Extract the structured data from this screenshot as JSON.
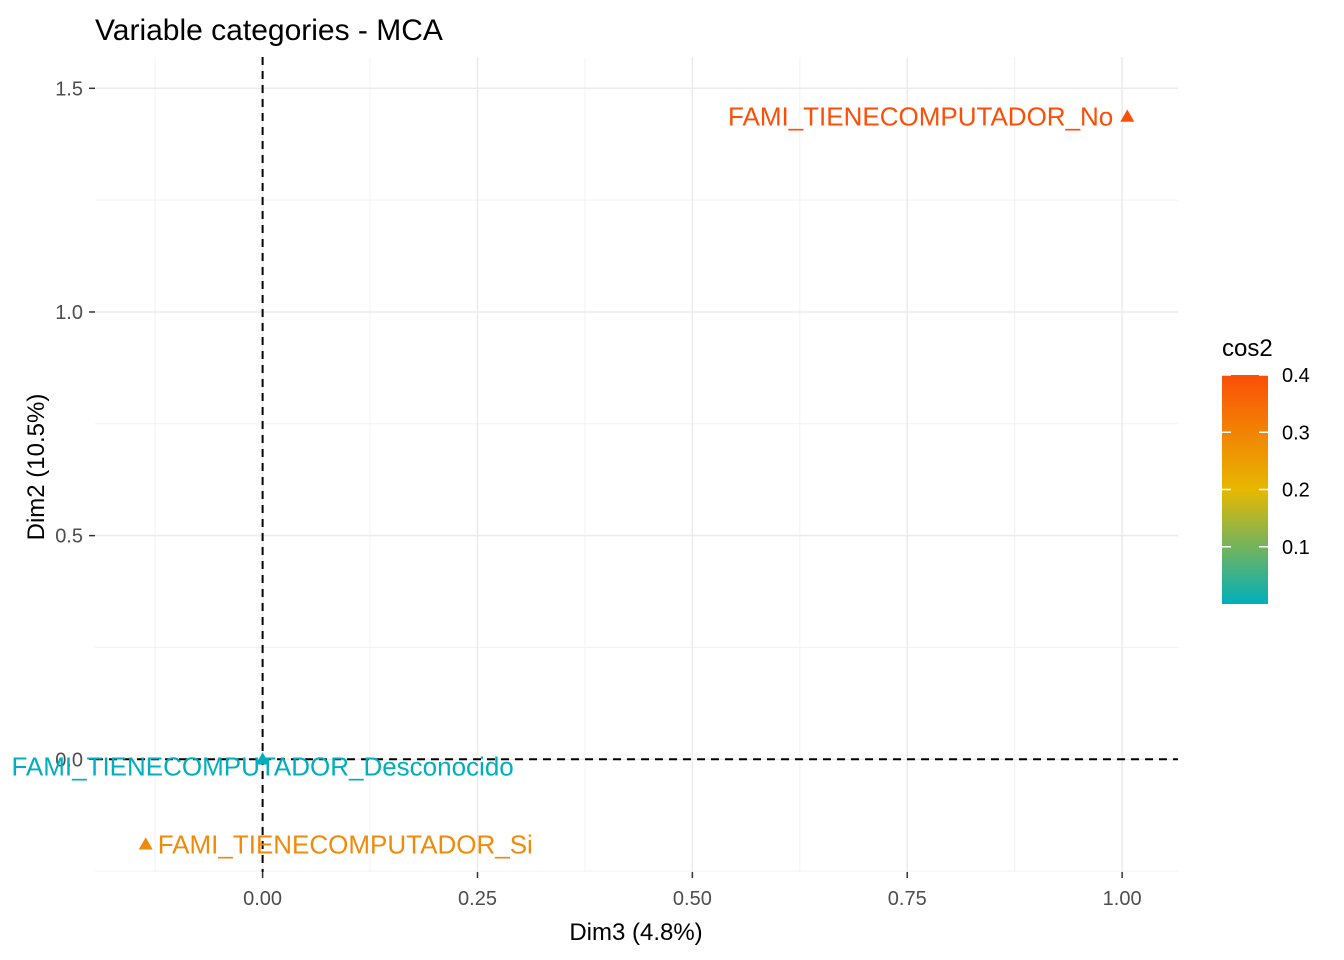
{
  "chart_data": {
    "type": "scatter",
    "title": "Variable categories - MCA",
    "xlabel": "Dim3 (4.8%)",
    "ylabel": "Dim2 (10.5%)",
    "xlim": [
      -0.195,
      1.065
    ],
    "ylim": [
      -0.252,
      1.57
    ],
    "xticks": [
      0.0,
      0.25,
      0.5,
      0.75,
      1.0
    ],
    "xtick_labels": [
      "0.00",
      "0.25",
      "0.50",
      "0.75",
      "1.00"
    ],
    "yticks": [
      0.0,
      0.5,
      1.0,
      1.5
    ],
    "ytick_labels": [
      "0.0",
      "0.5",
      "1.0",
      "1.5"
    ],
    "grid": true,
    "reference_lines": {
      "x": 0,
      "y": 0,
      "style": "dashed"
    },
    "points": [
      {
        "label": "FAMI_TIENECOMPUTADOR_No",
        "x": 1.006,
        "y": 1.437,
        "cos2": 0.4,
        "color": "#fc4e07",
        "label_anchor": "end"
      },
      {
        "label": "FAMI_TIENECOMPUTADOR_Desconocido",
        "x": 0.0,
        "y": 0.0,
        "cos2": 0.0,
        "color": "#00afbb",
        "label_anchor": "middle"
      },
      {
        "label": "FAMI_TIENECOMPUTADOR_Si",
        "x": -0.136,
        "y": -0.19,
        "cos2": 0.33,
        "color": "#f08a0b",
        "label_anchor": "start"
      }
    ],
    "legend": {
      "title": "cos2",
      "position": "right",
      "ticks": [
        "0.1",
        "0.2",
        "0.3",
        "0.4"
      ],
      "tick_values": [
        0.1,
        0.2,
        0.3,
        0.4
      ],
      "range": [
        0.0,
        0.4
      ],
      "gradient_colors": [
        "#00afbb",
        "#e7b800",
        "#fc4e07"
      ]
    }
  }
}
